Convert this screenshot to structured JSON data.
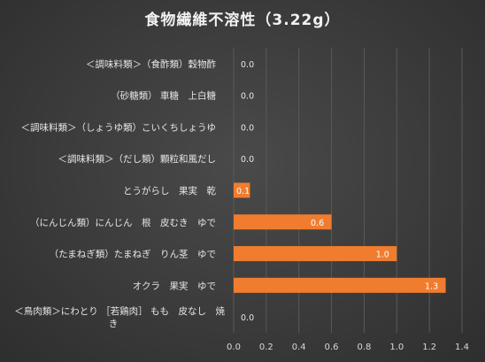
{
  "chart_data": {
    "type": "bar",
    "orientation": "horizontal",
    "title": "食物繊維不溶性（3.22g）",
    "categories": [
      "＜調味料類＞（食酢類）穀物酢",
      "（砂糖類） 車糖　上白糖",
      "＜調味料類＞（しょうゆ類）こいくちしょうゆ",
      "＜調味料類＞（だし類）顆粒和風だし",
      "とうがらし　果実　乾",
      "（にんじん類）にんじん　根　皮むき　ゆで",
      "（たまねぎ類）たまねぎ　りん茎　ゆで",
      "オクラ　果実　ゆで",
      "＜鳥肉類＞にわとり ［若鶏肉］ もも　皮なし　焼き"
    ],
    "values": [
      0.0,
      0.0,
      0.0,
      0.0,
      0.1,
      0.6,
      1.0,
      1.3,
      0.0
    ],
    "value_labels": [
      "0.0",
      "0.0",
      "0.0",
      "0.0",
      "0.1",
      "0.6",
      "1.0",
      "1.3",
      "0.0"
    ],
    "xlim": [
      0,
      1.4
    ],
    "x_ticks": [
      "0.0",
      "0.2",
      "0.4",
      "0.6",
      "0.8",
      "1.0",
      "1.2",
      "1.4"
    ],
    "grid": true,
    "colors": {
      "bar": "#f07d2f",
      "background": "#3a3a3a",
      "grid": "#595959",
      "text": "#e6e6e6"
    }
  }
}
